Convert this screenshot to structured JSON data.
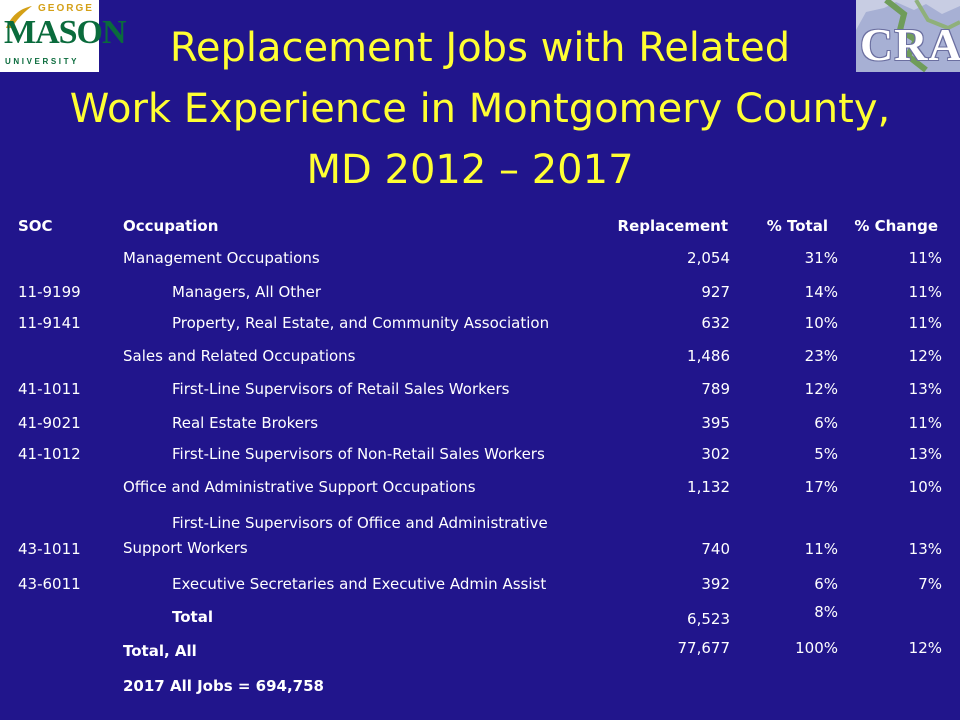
{
  "logos": {
    "left": {
      "top": "GEORGE",
      "main": "MASON",
      "bottom": "UNIVERSITY"
    },
    "right": {
      "text": "CRA"
    }
  },
  "title": {
    "line1": "Replacement Jobs with Related",
    "line2": "Work Experience in Montgomery County,",
    "line3": "MD 2012 – 2017"
  },
  "table": {
    "headers": {
      "soc": "SOC",
      "occupation": "Occupation",
      "replacement": "Replacement",
      "pct_total": "% Total",
      "pct_change": "% Change"
    },
    "rows": [
      {
        "soc": "",
        "occupation": "Management Occupations",
        "replacement": "2,054",
        "pct_total": "31%",
        "pct_change": "11%"
      },
      {
        "soc": "11-9199",
        "occupation": "Managers, All Other",
        "replacement": "927",
        "pct_total": "14%",
        "pct_change": "11%"
      },
      {
        "soc": "11-9141",
        "occupation": "Property, Real Estate, and Community Association",
        "replacement": "632",
        "pct_total": "10%",
        "pct_change": "11%"
      },
      {
        "soc": "",
        "occupation": "Sales and Related Occupations",
        "replacement": "1,486",
        "pct_total": "23%",
        "pct_change": "12%"
      },
      {
        "soc": "41-1011",
        "occupation": "First-Line Supervisors of Retail Sales Workers",
        "replacement": "789",
        "pct_total": "12%",
        "pct_change": "13%"
      },
      {
        "soc": "41-9021",
        "occupation": "Real Estate Brokers",
        "replacement": "395",
        "pct_total": "6%",
        "pct_change": "11%"
      },
      {
        "soc": "41-1012",
        "occupation": "First-Line Supervisors of Non-Retail Sales Workers",
        "replacement": "302",
        "pct_total": "5%",
        "pct_change": "13%"
      },
      {
        "soc": "",
        "occupation": "Office and Administrative Support Occupations",
        "replacement": "1,132",
        "pct_total": "17%",
        "pct_change": "10%"
      },
      {
        "soc": "43-1011",
        "occupation_line1": "First-Line Supervisors of Office and Administrative",
        "occupation_line2": "Support Workers",
        "replacement": "740",
        "pct_total": "11%",
        "pct_change": "13%"
      },
      {
        "soc": "43-6011",
        "occupation": "Executive Secretaries and Executive Admin Assist",
        "replacement": "392",
        "pct_total": "6%",
        "pct_change": "7%"
      }
    ],
    "total": {
      "label": "Total",
      "replacement": "6,523",
      "pct_total": "8%"
    },
    "total_all": {
      "label": "Total, All",
      "replacement": "77,677",
      "pct_total": "100%",
      "pct_change": "12%"
    },
    "footer": "2017 All Jobs = 694,758"
  }
}
